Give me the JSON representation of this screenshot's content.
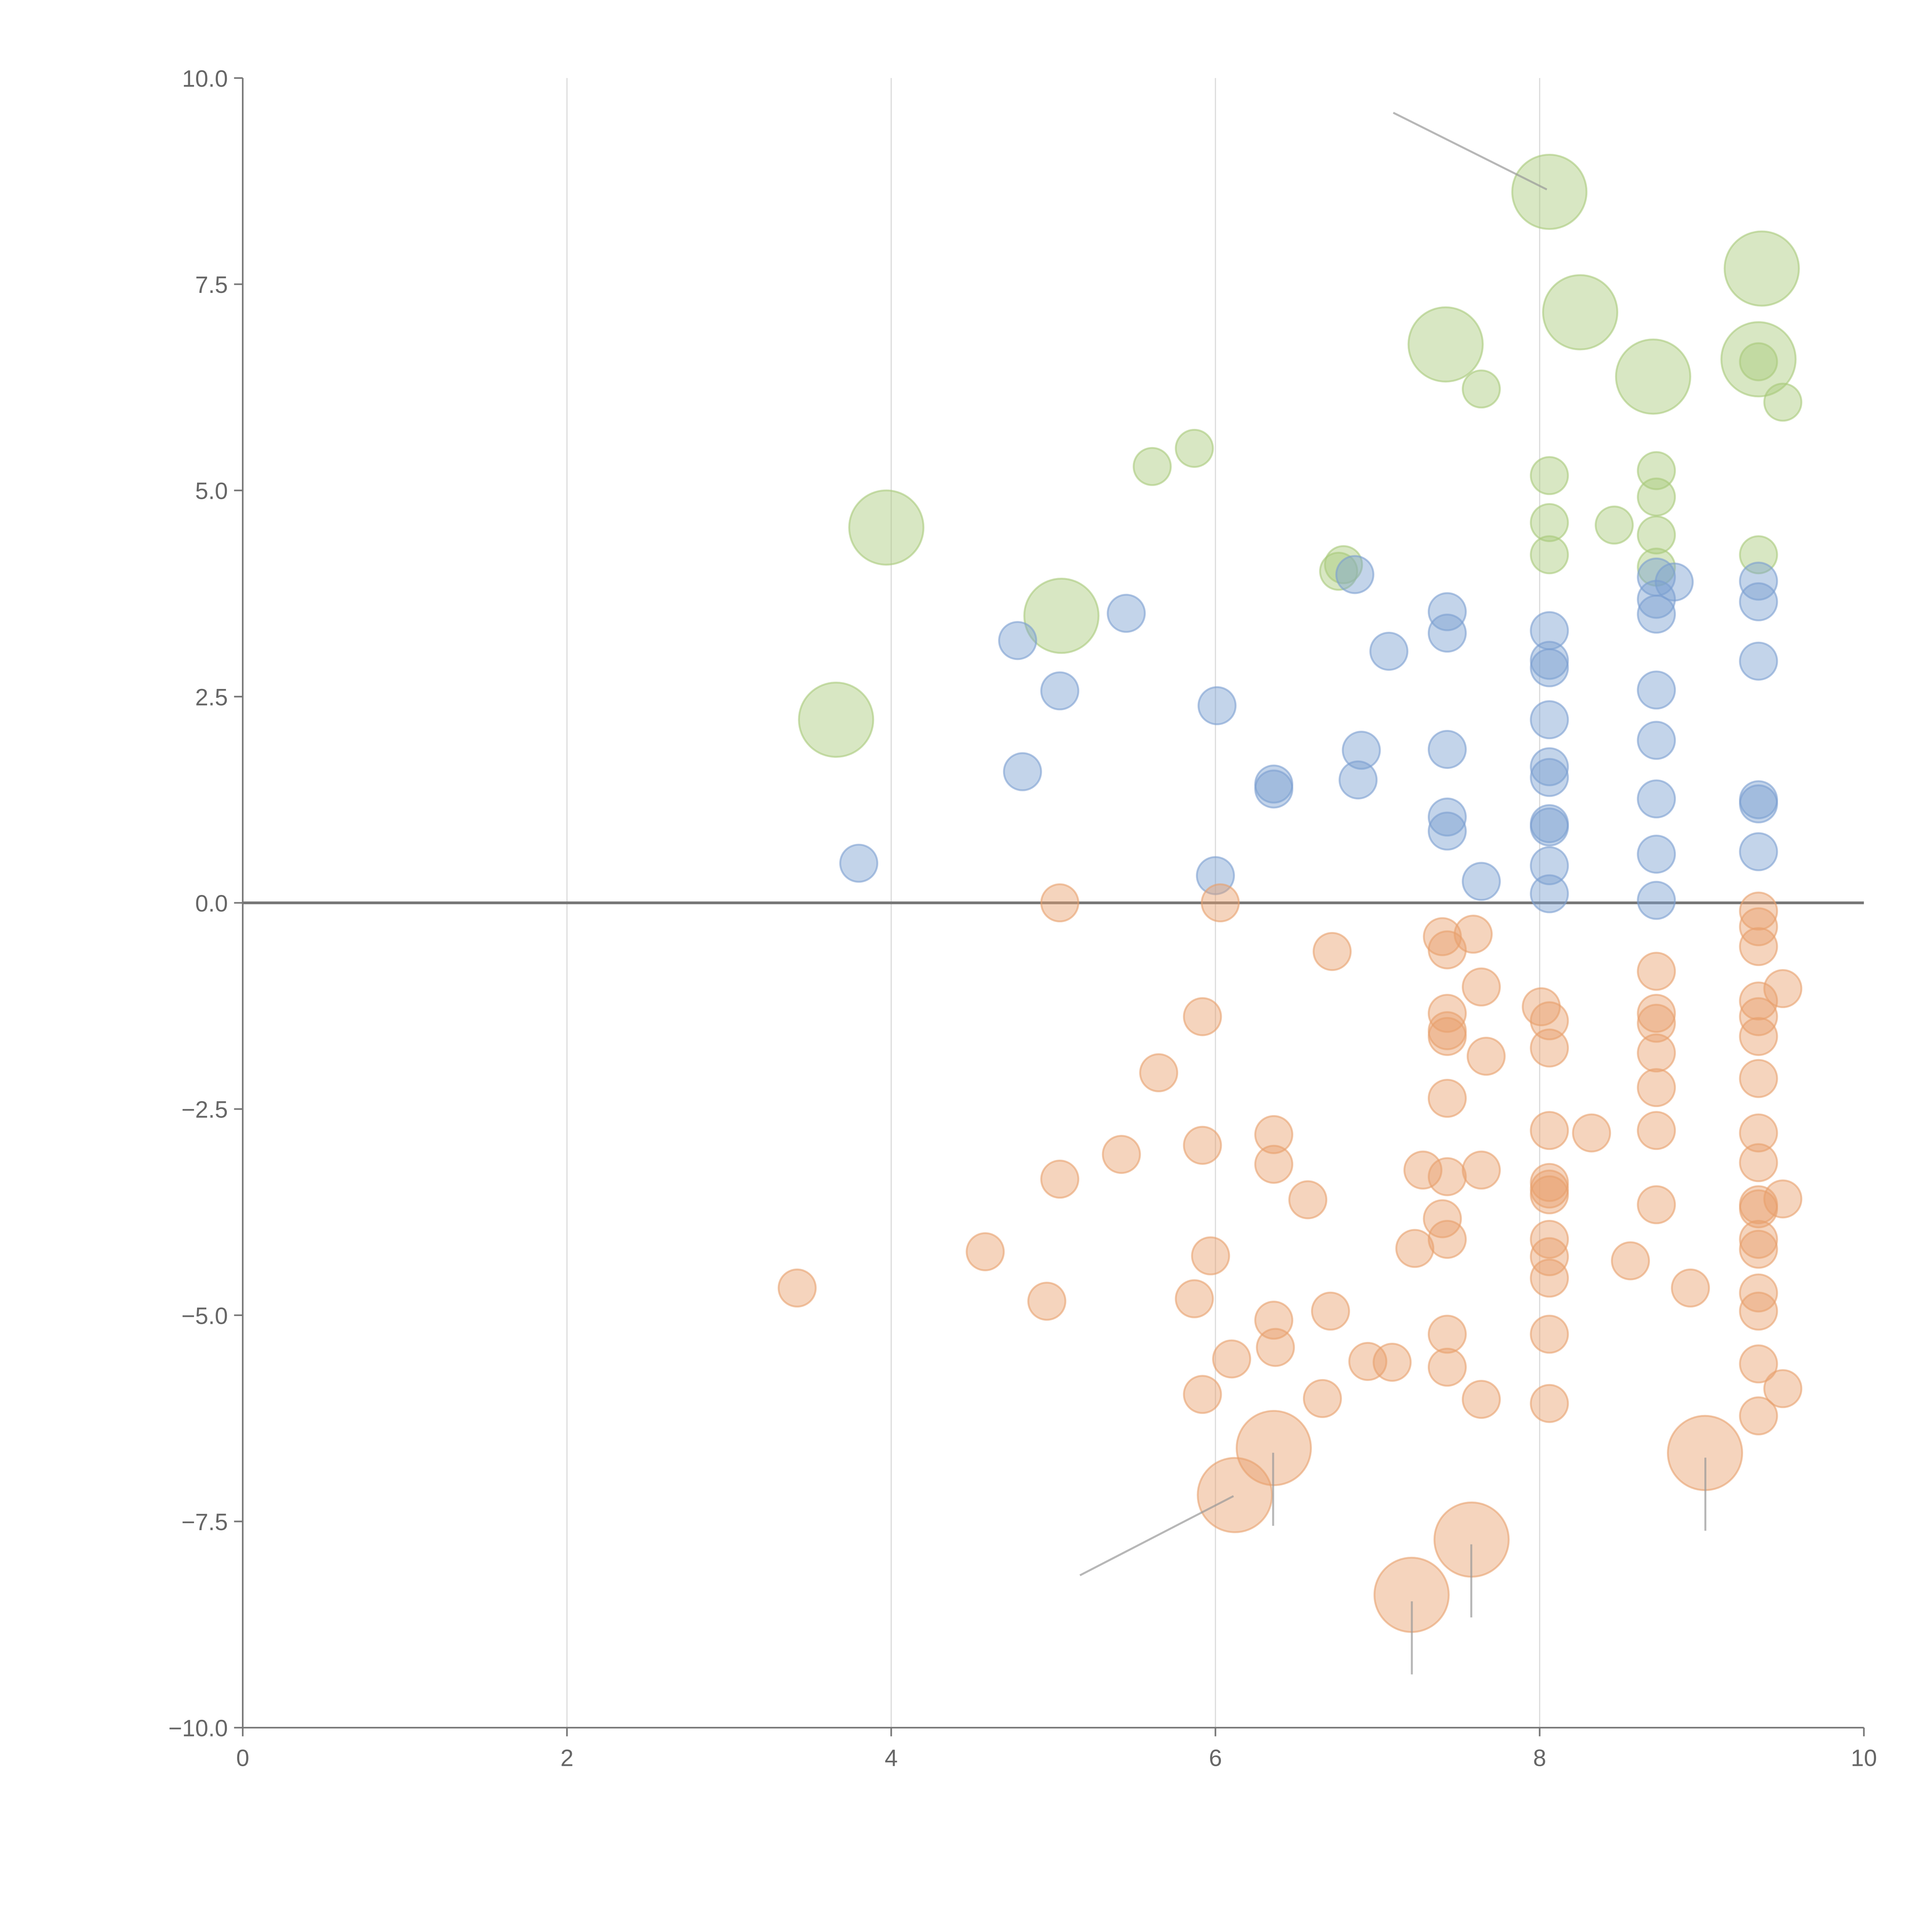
{
  "chart_data": {
    "type": "scatter",
    "title": "",
    "xlabel": "",
    "ylabel": "",
    "xlim": [
      0,
      10
    ],
    "ylim": [
      -10,
      10
    ],
    "xticks": [
      "0",
      "2",
      "4",
      "6",
      "8",
      "10"
    ],
    "yticks": [
      "10.0",
      "7.5",
      "5.0",
      "2.5",
      "0.0",
      "−2.5",
      "−5.0",
      "−7.5",
      "−10.0"
    ],
    "grid": "vertical",
    "series": [
      {
        "name": "green",
        "color": "#a8c97a",
        "points": [
          [
            8.06,
            8.62,
            4
          ],
          [
            9.37,
            7.69,
            4
          ],
          [
            8.25,
            7.16,
            4
          ],
          [
            7.42,
            6.77,
            4
          ],
          [
            8.7,
            6.38,
            4
          ],
          [
            9.35,
            6.59,
            4
          ],
          [
            9.35,
            6.56,
            1
          ],
          [
            7.64,
            6.23,
            1
          ],
          [
            9.5,
            6.07,
            1
          ],
          [
            5.87,
            5.51,
            1
          ],
          [
            5.61,
            5.29,
            1
          ],
          [
            3.97,
            4.55,
            4
          ],
          [
            8.06,
            5.18,
            1
          ],
          [
            8.72,
            5.24,
            1
          ],
          [
            8.72,
            4.92,
            1
          ],
          [
            8.06,
            4.61,
            1
          ],
          [
            8.46,
            4.58,
            1
          ],
          [
            8.72,
            4.46,
            1
          ],
          [
            8.06,
            4.22,
            1
          ],
          [
            9.35,
            4.22,
            1
          ],
          [
            8.72,
            4.07,
            1
          ],
          [
            6.76,
            4.02,
            1
          ],
          [
            6.79,
            4.1,
            1
          ],
          [
            5.05,
            3.48,
            4
          ],
          [
            3.66,
            2.22,
            4
          ]
        ]
      },
      {
        "name": "blue",
        "color": "#7b9fd0",
        "points": [
          [
            6.86,
            3.98,
            1
          ],
          [
            8.83,
            3.89,
            1
          ],
          [
            8.72,
            3.95,
            1
          ],
          [
            9.35,
            3.9,
            1
          ],
          [
            9.35,
            3.65,
            1
          ],
          [
            8.72,
            3.68,
            1
          ],
          [
            8.72,
            3.5,
            1
          ],
          [
            5.45,
            3.51,
            1
          ],
          [
            4.78,
            3.18,
            1
          ],
          [
            7.43,
            3.53,
            1
          ],
          [
            7.43,
            3.27,
            1
          ],
          [
            7.07,
            3.05,
            1
          ],
          [
            8.06,
            3.3,
            1
          ],
          [
            8.06,
            2.94,
            1
          ],
          [
            8.06,
            2.85,
            1
          ],
          [
            9.35,
            2.93,
            1
          ],
          [
            5.04,
            2.57,
            1
          ],
          [
            8.72,
            2.58,
            1
          ],
          [
            6.01,
            2.39,
            1
          ],
          [
            8.06,
            2.22,
            1
          ],
          [
            8.72,
            1.97,
            1
          ],
          [
            7.43,
            1.86,
            1
          ],
          [
            6.9,
            1.85,
            1
          ],
          [
            4.81,
            1.59,
            1
          ],
          [
            8.06,
            1.65,
            1
          ],
          [
            8.06,
            1.52,
            1
          ],
          [
            6.36,
            1.44,
            1
          ],
          [
            6.36,
            1.38,
            1
          ],
          [
            6.88,
            1.49,
            1
          ],
          [
            8.72,
            1.26,
            1
          ],
          [
            9.35,
            1.25,
            1
          ],
          [
            9.35,
            1.2,
            1
          ],
          [
            7.43,
            1.04,
            1
          ],
          [
            7.43,
            0.87,
            1
          ],
          [
            8.06,
            0.96,
            1
          ],
          [
            8.06,
            0.92,
            1
          ],
          [
            9.35,
            0.62,
            1
          ],
          [
            8.72,
            0.59,
            1
          ],
          [
            8.06,
            0.45,
            1
          ],
          [
            3.8,
            0.48,
            1
          ],
          [
            6.0,
            0.33,
            1
          ],
          [
            7.64,
            0.26,
            1
          ],
          [
            8.06,
            0.11,
            1
          ],
          [
            8.72,
            0.03,
            1
          ]
        ]
      },
      {
        "name": "orange",
        "color": "#e8a06c",
        "points": [
          [
            5.04,
            0,
            1
          ],
          [
            6.03,
            0,
            1
          ],
          [
            9.35,
            -0.1,
            1
          ],
          [
            9.35,
            -0.29,
            1
          ],
          [
            9.35,
            -0.53,
            1
          ],
          [
            7.4,
            -0.41,
            1
          ],
          [
            7.59,
            -0.38,
            1
          ],
          [
            7.43,
            -0.57,
            1
          ],
          [
            6.72,
            -0.59,
            1
          ],
          [
            8.72,
            -0.83,
            1
          ],
          [
            9.5,
            -1.04,
            1
          ],
          [
            7.64,
            -1.02,
            1
          ],
          [
            8.01,
            -1.26,
            1
          ],
          [
            8.06,
            -1.43,
            1
          ],
          [
            7.43,
            -1.34,
            1
          ],
          [
            7.43,
            -1.55,
            1
          ],
          [
            7.43,
            -1.62,
            1
          ],
          [
            8.72,
            -1.34,
            1
          ],
          [
            8.72,
            -1.46,
            1
          ],
          [
            9.35,
            -1.19,
            1
          ],
          [
            9.35,
            -1.38,
            1
          ],
          [
            9.35,
            -1.62,
            1
          ],
          [
            5.92,
            -1.38,
            1
          ],
          [
            8.06,
            -1.76,
            1
          ],
          [
            7.67,
            -1.86,
            1
          ],
          [
            8.72,
            -1.82,
            1
          ],
          [
            5.65,
            -2.06,
            1
          ],
          [
            9.35,
            -2.13,
            1
          ],
          [
            8.72,
            -2.24,
            1
          ],
          [
            7.43,
            -2.37,
            1
          ],
          [
            8.06,
            -2.76,
            1
          ],
          [
            8.32,
            -2.79,
            1
          ],
          [
            8.72,
            -2.76,
            1
          ],
          [
            9.35,
            -2.79,
            1
          ],
          [
            6.36,
            -2.81,
            1
          ],
          [
            5.92,
            -2.94,
            1
          ],
          [
            5.42,
            -3.05,
            1
          ],
          [
            6.36,
            -3.17,
            1
          ],
          [
            9.35,
            -3.15,
            1
          ],
          [
            7.28,
            -3.24,
            1
          ],
          [
            7.43,
            -3.32,
            1
          ],
          [
            7.64,
            -3.24,
            1
          ],
          [
            5.04,
            -3.35,
            1
          ],
          [
            8.06,
            -3.39,
            1
          ],
          [
            8.06,
            -3.47,
            1
          ],
          [
            8.06,
            -3.54,
            1
          ],
          [
            6.57,
            -3.6,
            1
          ],
          [
            9.5,
            -3.59,
            1
          ],
          [
            9.35,
            -3.66,
            1
          ],
          [
            9.35,
            -3.71,
            1
          ],
          [
            8.72,
            -3.66,
            1
          ],
          [
            7.4,
            -3.83,
            1
          ],
          [
            7.43,
            -4.08,
            1
          ],
          [
            8.06,
            -4.08,
            1
          ],
          [
            9.35,
            -4.08,
            1
          ],
          [
            9.35,
            -4.2,
            1
          ],
          [
            7.23,
            -4.19,
            1
          ],
          [
            4.58,
            -4.23,
            1
          ],
          [
            5.97,
            -4.28,
            1
          ],
          [
            8.06,
            -4.29,
            1
          ],
          [
            8.56,
            -4.34,
            1
          ],
          [
            8.06,
            -4.55,
            1
          ],
          [
            3.42,
            -4.67,
            1
          ],
          [
            8.93,
            -4.67,
            1
          ],
          [
            9.35,
            -4.73,
            1
          ],
          [
            4.96,
            -4.83,
            1
          ],
          [
            5.87,
            -4.8,
            1
          ],
          [
            9.35,
            -4.95,
            1
          ],
          [
            6.71,
            -4.95,
            1
          ],
          [
            6.36,
            -5.06,
            1
          ],
          [
            7.43,
            -5.23,
            1
          ],
          [
            8.06,
            -5.23,
            1
          ],
          [
            6.37,
            -5.39,
            1
          ],
          [
            6.1,
            -5.53,
            1
          ],
          [
            6.94,
            -5.56,
            1
          ],
          [
            7.09,
            -5.57,
            1
          ],
          [
            9.35,
            -5.59,
            1
          ],
          [
            7.43,
            -5.63,
            1
          ],
          [
            9.5,
            -5.89,
            1
          ],
          [
            5.92,
            -5.96,
            1
          ],
          [
            6.66,
            -6.01,
            1
          ],
          [
            7.64,
            -6.02,
            1
          ],
          [
            8.06,
            -6.07,
            1
          ],
          [
            9.35,
            -6.22,
            1
          ],
          [
            6.36,
            -6.61,
            4
          ],
          [
            6.12,
            -7.18,
            4
          ],
          [
            9.02,
            -6.67,
            4
          ],
          [
            7.58,
            -7.72,
            4
          ],
          [
            7.21,
            -8.39,
            4
          ]
        ]
      }
    ]
  }
}
